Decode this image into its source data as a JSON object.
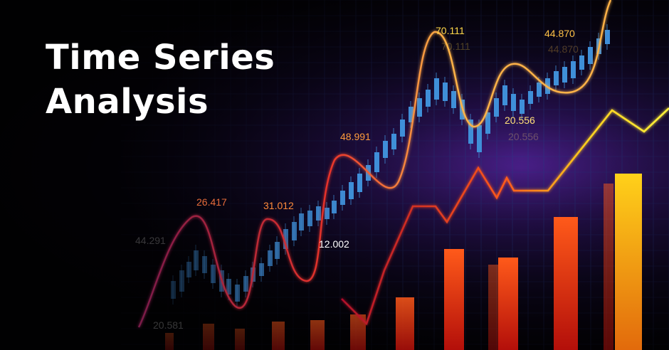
{
  "headline": {
    "line1": "Time Series",
    "line2": "Analysis"
  },
  "labels": [
    "70.111",
    "44.870",
    "48.991",
    "20.556",
    "26.417",
    "31.012",
    "12.002"
  ],
  "ghost_labels": [
    "70.111",
    "44.870",
    "20.556",
    "44.291",
    "20.581"
  ],
  "colors": {
    "background": "#08040f",
    "glow": "#4a1f8a",
    "grid": "#2b3a8a",
    "candles": "#3f8fd8",
    "wave": "#ffb347",
    "zigzag": "#ffe533",
    "bar_low": "#d91d0f",
    "bar_high": "#ffcc1a",
    "headline": "#ffffff"
  }
}
